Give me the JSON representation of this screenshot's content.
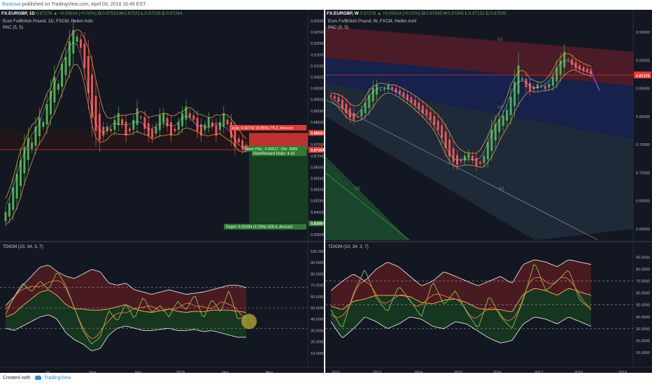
{
  "header": {
    "author": "Bastosai",
    "published_text": "published on TradingView.com, April 03, 2018 16:48 EST"
  },
  "footer": {
    "created_with": "Created with",
    "brand": "TradingView"
  },
  "colors": {
    "background": "#131722",
    "up": "#4caf50",
    "down": "#ef5350",
    "pac_upper": "#e6a23c",
    "stop_zone": "#e53935",
    "target_zone": "#1b5e20",
    "rsi_line": "#8bc34a",
    "ma_line": "#ff7043"
  },
  "left_panel": {
    "title_line": {
      "symbol": "FX:EURGBP, 1D",
      "last": "0.87276",
      "change": "+0.00014 (+0.02%)",
      "o_label": "O:",
      "o": "0.87533",
      "h_label": "H:",
      "h": "0.87533",
      "l_label": "L:",
      "l": "0.87228",
      "c_label": "C:",
      "c": "0.87264"
    },
    "instrument": "Euro Fx/British Pound, 1D, FXCM, Heikin Ashi",
    "pac": "PAC (5, 5)",
    "indicator": "TDIGM (10, 34, 3, 7)",
    "stop_label": "Stop: 0.00742 (0.85%) 74.2, Amount",
    "open_label": "Open P&L: 0.00017, Qty: 3369",
    "rr_label": "Risk/Reward Ratio: 4.43",
    "target_label": "Target: 0.03284 (3.76%) 328.4, Amount",
    "price_axis": [
      "0.93000",
      "0.92500",
      "0.92000",
      "0.91500",
      "0.91000",
      "0.90500",
      "0.90000",
      "0.89500",
      "0.89000",
      "0.88500",
      "0.88000",
      "0.87500",
      "0.87000",
      "0.86500",
      "0.86000",
      "0.85500",
      "0.85000",
      "0.84500",
      "0.84000",
      "0.83500"
    ],
    "price_tags": [
      {
        "text": "0.88023",
        "color": "#e53935"
      },
      {
        "text": "0.87281",
        "color": "#555555"
      },
      {
        "text": "0.87276",
        "color": "#e53935"
      },
      {
        "text": "0.87264",
        "color": "#e53935"
      },
      {
        "text": "0.83997",
        "color": "#2e7d32"
      }
    ],
    "osc_axis": [
      "100.0000",
      "90.0000",
      "80.0000",
      "70.0000",
      "60.0000",
      "50.0000",
      "40.0000",
      "30.0000",
      "20.0000",
      "10.0000"
    ],
    "time_axis": [
      "Jul",
      "Sep",
      "Nov",
      "2018",
      "Mar",
      "May"
    ]
  },
  "right_panel": {
    "title_line": {
      "symbol": "FX:EURGBP, W",
      "last": "0.87276",
      "change": "+0.00014 (+0.02%)",
      "o_label": "O:",
      "o": "0.87845",
      "h_label": "H:",
      "h": "0.87845",
      "l_label": "L:",
      "l": "0.87132",
      "c_label": "C:",
      "c": "0.87505"
    },
    "instrument": "Euro Fx/British Pound, W, FXCM, Heikin Ashi",
    "pac": "PAC (5, 5)",
    "indicator": "TDIGM (10, 34, 3, 7)",
    "fan_labels": [
      "2/2",
      "1/1",
      "1/2",
      "1/1"
    ],
    "price_axis": [
      "0.95000",
      "0.90000",
      "0.85000",
      "0.80000",
      "0.75000",
      "0.70000",
      "0.65000",
      "0.60000"
    ],
    "price_tags": [
      {
        "text": "0.87505",
        "color": "#e53935"
      },
      {
        "text": "0.87276",
        "color": "#e53935"
      }
    ],
    "osc_axis": [
      "90.0000",
      "80.0000",
      "70.0000",
      "60.0000",
      "50.0000",
      "40.0000",
      "30.0000",
      "20.0000",
      "10.0000"
    ],
    "time_axis": [
      "2012",
      "2013",
      "2014",
      "2015",
      "2016",
      "2017",
      "2018",
      "2019"
    ]
  },
  "chart_data": [
    {
      "type": "candlestick",
      "title": "Euro Fx/British Pound, 1D, FXCM, Heikin Ashi",
      "xlabels": [
        "Jul",
        "Sep",
        "Nov",
        "2018",
        "Mar",
        "May"
      ],
      "ylim": [
        0.835,
        0.93
      ],
      "close": [
        0.845,
        0.849,
        0.856,
        0.862,
        0.868,
        0.874,
        0.878,
        0.876,
        0.883,
        0.887,
        0.885,
        0.893,
        0.899,
        0.905,
        0.902,
        0.911,
        0.914,
        0.921,
        0.926,
        0.923,
        0.918,
        0.909,
        0.898,
        0.887,
        0.881,
        0.877,
        0.879,
        0.883,
        0.881,
        0.886,
        0.889,
        0.884,
        0.879,
        0.881,
        0.886,
        0.891,
        0.887,
        0.882,
        0.879,
        0.878,
        0.883,
        0.888,
        0.889,
        0.883,
        0.879,
        0.881,
        0.885,
        0.889,
        0.892,
        0.887,
        0.886,
        0.881,
        0.879,
        0.884,
        0.887,
        0.883,
        0.879,
        0.885,
        0.889,
        0.884,
        0.878,
        0.874,
        0.876,
        0.873,
        0.873
      ],
      "indicator": {
        "name": "TDIGM (10, 34, 3, 7)",
        "ylim": [
          0,
          100
        ],
        "levels": [
          68,
          50,
          32
        ]
      }
    },
    {
      "type": "candlestick",
      "title": "Euro Fx/British Pound, W, FXCM, Heikin Ashi",
      "xlabels": [
        "2012",
        "2013",
        "2014",
        "2015",
        "2016",
        "2017",
        "2018",
        "2019"
      ],
      "ylim": [
        0.58,
        0.97
      ],
      "close": [
        0.835,
        0.832,
        0.826,
        0.815,
        0.806,
        0.798,
        0.794,
        0.8,
        0.812,
        0.824,
        0.838,
        0.851,
        0.856,
        0.848,
        0.85,
        0.856,
        0.848,
        0.843,
        0.84,
        0.835,
        0.83,
        0.825,
        0.82,
        0.814,
        0.806,
        0.802,
        0.794,
        0.785,
        0.776,
        0.762,
        0.744,
        0.729,
        0.719,
        0.714,
        0.72,
        0.73,
        0.735,
        0.722,
        0.712,
        0.716,
        0.73,
        0.754,
        0.776,
        0.787,
        0.795,
        0.802,
        0.812,
        0.835,
        0.862,
        0.891,
        0.868,
        0.852,
        0.846,
        0.848,
        0.857,
        0.855,
        0.849,
        0.858,
        0.87,
        0.887,
        0.9,
        0.915,
        0.902,
        0.892,
        0.886,
        0.884,
        0.882,
        0.88,
        0.875
      ],
      "indicator": {
        "name": "TDIGM (10, 34, 3, 7)",
        "ylim": [
          0,
          95
        ],
        "levels": [
          70,
          50,
          30
        ]
      }
    }
  ]
}
